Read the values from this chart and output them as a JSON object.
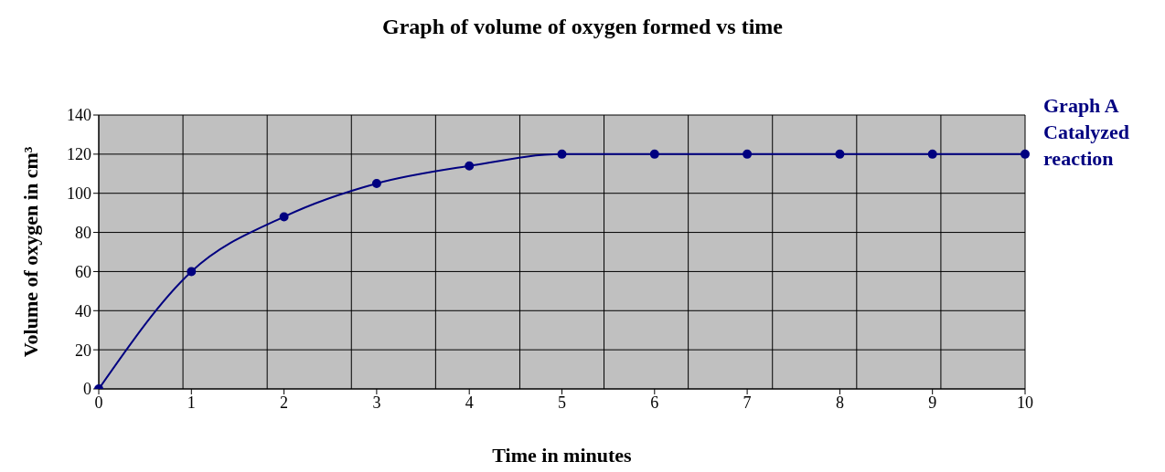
{
  "chart_data": {
    "type": "line",
    "title": "Graph of volume of oxygen formed vs time",
    "xlabel": "Time in minutes",
    "ylabel": "Volume of oxygen in cm³",
    "categories": [
      "0",
      "1",
      "2",
      "3",
      "4",
      "5",
      "6",
      "7",
      "8",
      "9",
      "10"
    ],
    "series": [
      {
        "name": "Graph A Catalyzed reaction",
        "color": "#000080",
        "values": [
          0,
          60,
          88,
          105,
          114,
          120,
          120,
          120,
          120,
          120,
          120
        ]
      }
    ],
    "ylim": [
      0,
      140
    ],
    "yticks": [
      0,
      20,
      40,
      60,
      80,
      100,
      120,
      140
    ],
    "grid": true,
    "legend": "right",
    "marker": "circle",
    "line_style": "solid"
  }
}
